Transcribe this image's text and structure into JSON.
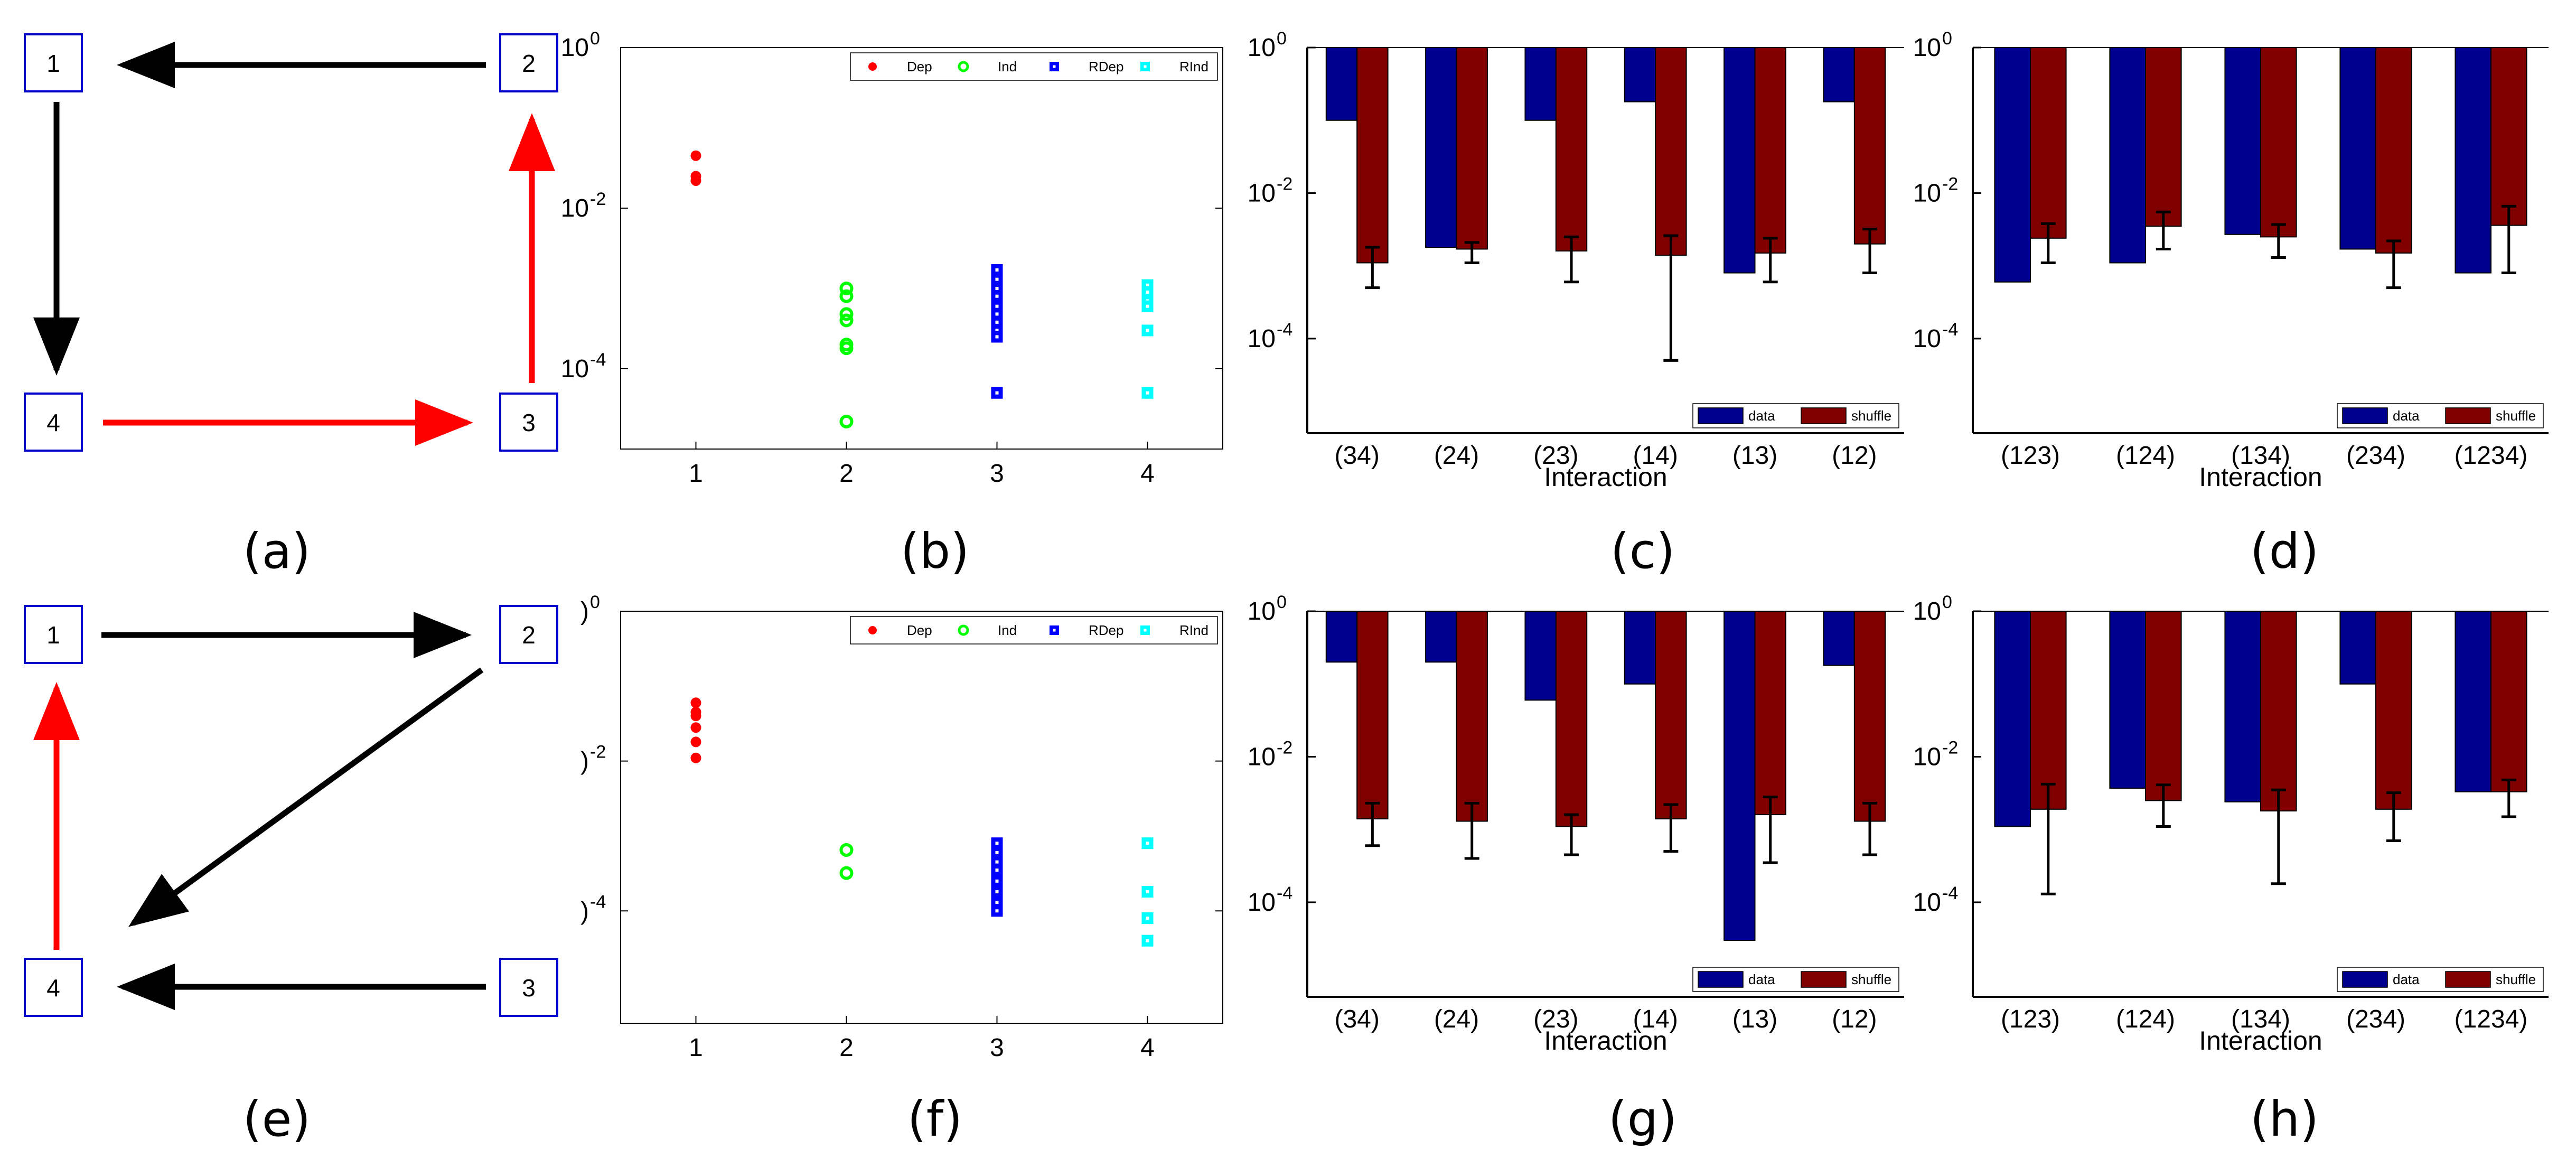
{
  "colors": {
    "black": "#000000",
    "red": "#ff0000",
    "green": "#00ff00",
    "blue": "#0000ff",
    "cyan": "#00ffff",
    "navy": "#00008f",
    "darkred": "#800000",
    "node_border": "#0000cc"
  },
  "captions": [
    "(a)",
    "(b)",
    "(c)",
    "(d)",
    "(e)",
    "(f)",
    "(g)",
    "(h)"
  ],
  "graphs": [
    {
      "nodes": [
        "1",
        "2",
        "3",
        "4"
      ],
      "edges": [
        {
          "from": "2",
          "to": "1",
          "color": "black"
        },
        {
          "from": "1",
          "to": "4",
          "color": "black"
        },
        {
          "from": "4",
          "to": "3",
          "color": "red"
        },
        {
          "from": "3",
          "to": "2",
          "color": "red"
        }
      ]
    },
    {
      "nodes": [
        "1",
        "2",
        "3",
        "4"
      ],
      "edges": [
        {
          "from": "1",
          "to": "2",
          "color": "black"
        },
        {
          "from": "2",
          "to": "4",
          "color": "black"
        },
        {
          "from": "3",
          "to": "4",
          "color": "black"
        },
        {
          "from": "4",
          "to": "1",
          "color": "red"
        }
      ]
    }
  ],
  "chart_data": [
    {
      "id": "b",
      "type": "scatter",
      "yscale": "log",
      "ylim_exp": [
        -5,
        0
      ],
      "ytick_exps": [
        0,
        -2,
        -4
      ],
      "ytick_labels": [
        "10",
        "10",
        "10"
      ],
      "ytick_sup": [
        "0",
        "-2",
        "-4"
      ],
      "xticks": [
        "1",
        "2",
        "3",
        "4"
      ],
      "xlim": [
        0.5,
        4.5
      ],
      "legend": [
        "Dep",
        "Ind",
        "RDep",
        "RInd"
      ],
      "series": [
        {
          "name": "Dep",
          "x": 1,
          "values": [
            0.045,
            0.025,
            0.022
          ]
        },
        {
          "name": "Ind",
          "x": 2,
          "values": [
            0.001,
            0.0008,
            0.00048,
            0.0004,
            0.0002,
            0.00018,
            2.2e-05
          ]
        },
        {
          "name": "RDep",
          "x": 3,
          "values": [
            0.0017,
            0.0013,
            0.001,
            0.0008,
            0.0006,
            0.00048,
            0.00038,
            0.0003,
            0.00025,
            5e-05
          ]
        },
        {
          "name": "RInd",
          "x": 4,
          "values": [
            0.0011,
            0.0009,
            0.0007,
            0.0006,
            0.0003,
            5e-05
          ]
        }
      ]
    },
    {
      "id": "c",
      "type": "bar",
      "yscale": "log",
      "ylim_exp": [
        -5.3,
        0
      ],
      "ytick_exps": [
        0,
        -2,
        -4
      ],
      "ytick_labels": [
        "10",
        "10",
        "10"
      ],
      "ytick_sup": [
        "0",
        "-2",
        "-4"
      ],
      "categories": [
        "(34)",
        "(24)",
        "(23)",
        "(14)",
        "(13)",
        "(12)"
      ],
      "xlabel": "Interaction",
      "legend": [
        "data",
        "shuffle"
      ],
      "series": [
        {
          "name": "data",
          "values": [
            0.1,
            0.0018,
            0.1,
            0.18,
            0.0008,
            0.18
          ]
        },
        {
          "name": "shuffle",
          "values": [
            0.0011,
            0.0017,
            0.0016,
            0.0014,
            0.0015,
            0.002
          ],
          "err_low": [
            0.0005,
            0.0011,
            0.0006,
            5e-05,
            0.0006,
            0.0008
          ],
          "err_high": [
            0.0018,
            0.0021,
            0.0025,
            0.0026,
            0.0024,
            0.0032
          ]
        }
      ]
    },
    {
      "id": "d",
      "type": "bar",
      "yscale": "log",
      "ylim_exp": [
        -5.3,
        0
      ],
      "ytick_exps": [
        0,
        -2,
        -4
      ],
      "ytick_labels": [
        "10",
        "10",
        "10"
      ],
      "ytick_sup": [
        "0",
        "-2",
        "-4"
      ],
      "categories": [
        "(123)",
        "(124)",
        "(134)",
        "(234)",
        "(1234)"
      ],
      "xlabel": "Interaction",
      "legend": [
        "data",
        "shuffle"
      ],
      "series": [
        {
          "name": "data",
          "values": [
            0.0006,
            0.0011,
            0.0027,
            0.0017,
            0.0008
          ]
        },
        {
          "name": "shuffle",
          "values": [
            0.0024,
            0.0035,
            0.0025,
            0.0015,
            0.0036
          ],
          "err_low": [
            0.0011,
            0.0017,
            0.0013,
            0.0005,
            0.0008
          ],
          "err_high": [
            0.0038,
            0.0055,
            0.0037,
            0.0022,
            0.0066
          ]
        }
      ]
    },
    {
      "id": "f",
      "type": "scatter",
      "yscale": "log",
      "ylim_exp": [
        -5.5,
        0
      ],
      "ytick_exps": [
        0,
        -2,
        -4
      ],
      "ytick_labels": [
        ")",
        ")",
        ")"
      ],
      "ytick_sup": [
        "0",
        "-2",
        "-4"
      ],
      "xticks": [
        "1",
        "2",
        "3",
        "4"
      ],
      "xlim": [
        0.5,
        4.5
      ],
      "legend": [
        "Dep",
        "Ind",
        "RDep",
        "RInd"
      ],
      "series": [
        {
          "name": "Dep",
          "x": 1,
          "values": [
            0.06,
            0.045,
            0.04,
            0.028,
            0.018,
            0.011
          ]
        },
        {
          "name": "Ind",
          "x": 2,
          "values": [
            0.00065,
            0.00032
          ]
        },
        {
          "name": "RDep",
          "x": 3,
          "values": [
            0.0008,
            0.0006,
            0.00045,
            0.00035,
            0.00025,
            0.00018,
            0.00013,
            0.0001
          ]
        },
        {
          "name": "RInd",
          "x": 4,
          "values": [
            0.0008,
            0.00018,
            8e-05,
            4e-05
          ]
        }
      ]
    },
    {
      "id": "g",
      "type": "bar",
      "yscale": "log",
      "ylim_exp": [
        -5.3,
        0
      ],
      "ytick_exps": [
        0,
        -2,
        -4
      ],
      "ytick_labels": [
        "10",
        "10",
        "10"
      ],
      "ytick_sup": [
        "0",
        "-2",
        "-4"
      ],
      "categories": [
        "(34)",
        "(24)",
        "(23)",
        "(14)",
        "(13)",
        "(12)"
      ],
      "xlabel": "Interaction",
      "legend": [
        "data",
        "shuffle"
      ],
      "series": [
        {
          "name": "data",
          "values": [
            0.2,
            0.2,
            0.06,
            0.1,
            3e-05,
            0.18
          ]
        },
        {
          "name": "shuffle",
          "values": [
            0.0014,
            0.0013,
            0.0011,
            0.0014,
            0.0016,
            0.0013
          ],
          "err_low": [
            0.0006,
            0.0004,
            0.00045,
            0.0005,
            0.00035,
            0.00045
          ],
          "err_high": [
            0.0023,
            0.0023,
            0.0016,
            0.0022,
            0.0028,
            0.0023
          ]
        }
      ]
    },
    {
      "id": "h",
      "type": "bar",
      "yscale": "log",
      "ylim_exp": [
        -5.3,
        0
      ],
      "ytick_exps": [
        0,
        -2,
        -4
      ],
      "ytick_labels": [
        "10",
        "10",
        "10"
      ],
      "ytick_sup": [
        "0",
        "-2",
        "-4"
      ],
      "categories": [
        "(123)",
        "(124)",
        "(134)",
        "(234)",
        "(1234)"
      ],
      "xlabel": "Interaction",
      "legend": [
        "data",
        "shuffle"
      ],
      "series": [
        {
          "name": "data",
          "values": [
            0.0011,
            0.0037,
            0.0024,
            0.1,
            0.0033
          ]
        },
        {
          "name": "shuffle",
          "values": [
            0.0019,
            0.0025,
            0.0018,
            0.0019,
            0.0033
          ],
          "err_low": [
            0.00013,
            0.0011,
            0.00018,
            0.0007,
            0.0015
          ],
          "err_high": [
            0.0042,
            0.0041,
            0.0035,
            0.0032,
            0.0048
          ]
        }
      ]
    }
  ]
}
